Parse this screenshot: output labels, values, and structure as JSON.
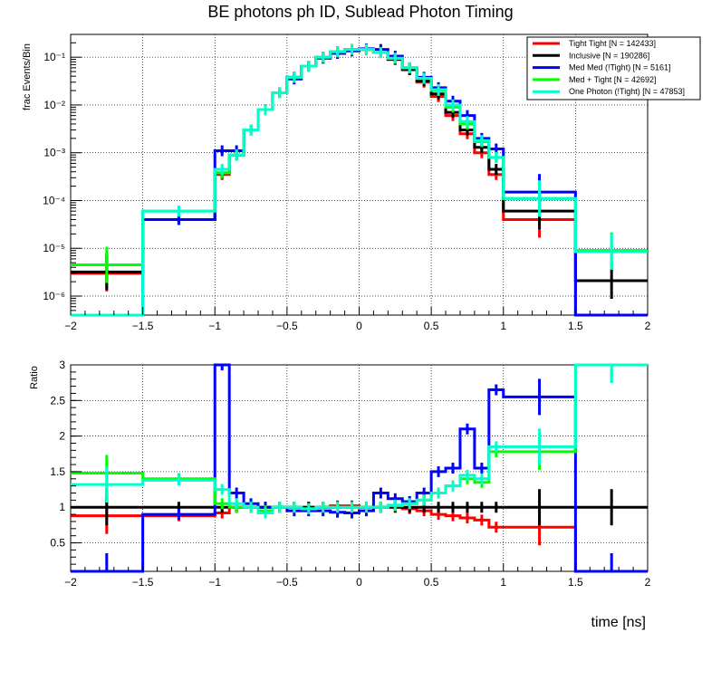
{
  "chart_data": [
    {
      "type": "line",
      "panel": "top",
      "title": "BE photons ph ID, Sublead Photon Timing",
      "xlabel": "",
      "ylabel": "frac Events/Bin",
      "yscale": "log",
      "xlim": [
        -2,
        2
      ],
      "ylim": [
        4e-07,
        0.3
      ],
      "x_ticks": [
        "−2",
        "−1.5",
        "−1",
        "−0.5",
        "0",
        "0.5",
        "1",
        "1.5",
        "2"
      ],
      "bin_edges": [
        -2,
        -1.5,
        -1,
        -0.9,
        -0.8,
        -0.7,
        -0.6,
        -0.5,
        -0.4,
        -0.3,
        -0.2,
        -0.1,
        0,
        0.1,
        0.2,
        0.3,
        0.4,
        0.5,
        0.6,
        0.7,
        0.8,
        0.9,
        1,
        1.5,
        2
      ],
      "series": [
        {
          "name": "Tight Tight [N = 142433]",
          "color": "#ff0000",
          "values": [
            3e-06,
            4e-05,
            0.00035,
            0.0009,
            0.003,
            0.008,
            0.018,
            0.038,
            0.065,
            0.1,
            0.13,
            0.145,
            0.145,
            0.125,
            0.09,
            0.055,
            0.03,
            0.015,
            0.006,
            0.0025,
            0.001,
            0.00035,
            4e-05,
            0
          ]
        },
        {
          "name": "Inclusive [N = 190286]",
          "color": "#000000",
          "values": [
            3.2e-06,
            4e-05,
            0.00038,
            0.0009,
            0.003,
            0.008,
            0.018,
            0.038,
            0.065,
            0.1,
            0.13,
            0.145,
            0.145,
            0.125,
            0.09,
            0.055,
            0.032,
            0.017,
            0.007,
            0.003,
            0.0013,
            0.00045,
            6e-05,
            2.1e-06
          ]
        },
        {
          "name": "Med Med (!Tight) [N = 5161]",
          "color": "#0000ff",
          "values": [
            0,
            4e-05,
            0.0011,
            0.0011,
            0.003,
            0.008,
            0.018,
            0.035,
            0.065,
            0.095,
            0.12,
            0.135,
            0.15,
            0.145,
            0.105,
            0.06,
            0.038,
            0.023,
            0.012,
            0.006,
            0.002,
            0.0012,
            0.00015,
            0
          ]
        },
        {
          "name": "Med + Tight [N = 42692]",
          "color": "#00ff00",
          "values": [
            4.5e-06,
            6e-05,
            0.00038,
            0.0009,
            0.003,
            0.008,
            0.018,
            0.038,
            0.065,
            0.1,
            0.13,
            0.145,
            0.145,
            0.125,
            0.095,
            0.06,
            0.036,
            0.02,
            0.009,
            0.004,
            0.0017,
            0.0008,
            0.00011,
            9e-06
          ]
        },
        {
          "name": "One Photon (!Tight) [N = 47853]",
          "color": "#00ffcc",
          "values": [
            0,
            6e-05,
            0.00045,
            0.0009,
            0.003,
            0.008,
            0.018,
            0.038,
            0.065,
            0.1,
            0.13,
            0.145,
            0.145,
            0.125,
            0.095,
            0.06,
            0.036,
            0.021,
            0.01,
            0.0045,
            0.0018,
            0.0008,
            0.00011,
            8.5e-06
          ]
        }
      ]
    },
    {
      "type": "line",
      "panel": "bottom",
      "title": "",
      "xlabel": "time [ns]",
      "ylabel": "Ratio",
      "yscale": "linear",
      "xlim": [
        -2,
        2
      ],
      "ylim": [
        0.1,
        3
      ],
      "x_ticks": [
        "−2",
        "−1.5",
        "−1",
        "−0.5",
        "0",
        "0.5",
        "1",
        "1.5",
        "2"
      ],
      "y_ticks": [
        "0.5",
        "1",
        "1.5",
        "2",
        "2.5",
        "3"
      ],
      "bin_edges": [
        -2,
        -1.5,
        -1,
        -0.9,
        -0.8,
        -0.7,
        -0.6,
        -0.5,
        -0.4,
        -0.3,
        -0.2,
        -0.1,
        0,
        0.1,
        0.2,
        0.3,
        0.4,
        0.5,
        0.6,
        0.7,
        0.8,
        0.9,
        1,
        1.5,
        2
      ],
      "series": [
        {
          "name": "Tight Tight",
          "color": "#ff0000",
          "values": [
            0.88,
            0.88,
            0.92,
            1.0,
            1.0,
            1.0,
            1.0,
            1.0,
            1.0,
            1.0,
            1.02,
            1.02,
            1.0,
            1.0,
            1.0,
            0.98,
            0.95,
            0.9,
            0.88,
            0.85,
            0.82,
            0.72,
            0.72,
            0
          ]
        },
        {
          "name": "Inclusive",
          "color": "#000000",
          "values": [
            1,
            1,
            1,
            1,
            1,
            1,
            1,
            1,
            1,
            1,
            1,
            1,
            1,
            1,
            1,
            1,
            1,
            1,
            1,
            1,
            1,
            1,
            1,
            1
          ]
        },
        {
          "name": "Med Med (!Tight)",
          "color": "#0000ff",
          "values": [
            0.1,
            0.9,
            3.0,
            1.2,
            1.05,
            1.0,
            1.0,
            0.95,
            0.95,
            0.95,
            0.93,
            0.92,
            0.95,
            1.2,
            1.12,
            1.08,
            1.2,
            1.5,
            1.55,
            2.1,
            1.55,
            2.65,
            2.55,
            0.1
          ]
        },
        {
          "name": "Med + Tight",
          "color": "#00ff00",
          "values": [
            1.48,
            1.4,
            1.05,
            1.0,
            1.0,
            0.95,
            1.0,
            1.0,
            0.98,
            1.0,
            1.0,
            1.0,
            1.0,
            1.0,
            1.02,
            1.05,
            1.1,
            1.2,
            1.3,
            1.4,
            1.35,
            1.78,
            1.78,
            3.0
          ]
        },
        {
          "name": "One Photon (!Tight)",
          "color": "#00ffcc",
          "values": [
            1.32,
            1.38,
            1.25,
            1.05,
            1.0,
            0.92,
            1.0,
            1.0,
            0.98,
            1.0,
            1.0,
            1.0,
            1.0,
            1.0,
            1.03,
            1.05,
            1.1,
            1.2,
            1.3,
            1.45,
            1.4,
            1.85,
            1.85,
            3.0
          ]
        }
      ]
    }
  ],
  "top_y_ticks": [
    "10⁻⁶",
    "10⁻⁵",
    "10⁻⁴",
    "10⁻³",
    "10⁻²",
    "10⁻¹"
  ]
}
